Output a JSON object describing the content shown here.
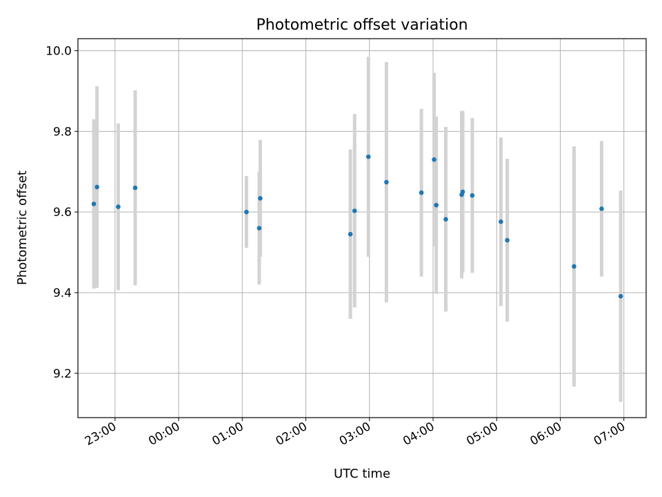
{
  "chart_data": {
    "type": "scatter",
    "title": "Photometric offset variation",
    "xlabel": "UTC time",
    "ylabel": "Photometric offset",
    "xlim": [
      "22:25",
      "07:21"
    ],
    "ylim": [
      9.09,
      10.03
    ],
    "grid": true,
    "x_ticks": [
      "23:00",
      "00:00",
      "01:00",
      "02:00",
      "03:00",
      "04:00",
      "05:00",
      "06:00",
      "07:00"
    ],
    "y_ticks": [
      9.2,
      9.4,
      9.6,
      9.8,
      10.0
    ],
    "y_tick_labels": [
      "9.2",
      "9.4",
      "9.6",
      "9.8",
      "10.0"
    ],
    "marker_color": "#1f77b4",
    "errorbar_color": "#d3d3d3",
    "points": [
      {
        "x": "22:40",
        "y": 9.62,
        "err": 0.21
      },
      {
        "x": "22:43",
        "y": 9.662,
        "err": 0.25
      },
      {
        "x": "23:03",
        "y": 9.613,
        "err": 0.207
      },
      {
        "x": "23:19",
        "y": 9.66,
        "err": 0.242
      },
      {
        "x": "01:04",
        "y": 9.6,
        "err": 0.089
      },
      {
        "x": "01:16",
        "y": 9.56,
        "err": 0.14
      },
      {
        "x": "01:17",
        "y": 9.634,
        "err": 0.145
      },
      {
        "x": "02:42",
        "y": 9.545,
        "err": 0.21
      },
      {
        "x": "02:46",
        "y": 9.603,
        "err": 0.24
      },
      {
        "x": "02:59",
        "y": 9.737,
        "err": 0.248
      },
      {
        "x": "03:16",
        "y": 9.674,
        "err": 0.298
      },
      {
        "x": "03:49",
        "y": 9.648,
        "err": 0.208
      },
      {
        "x": "04:01",
        "y": 9.73,
        "err": 0.215
      },
      {
        "x": "04:03",
        "y": 9.617,
        "err": 0.22
      },
      {
        "x": "04:12",
        "y": 9.582,
        "err": 0.229
      },
      {
        "x": "04:27",
        "y": 9.643,
        "err": 0.208
      },
      {
        "x": "04:28",
        "y": 9.65,
        "err": 0.2
      },
      {
        "x": "04:37",
        "y": 9.641,
        "err": 0.192
      },
      {
        "x": "05:04",
        "y": 9.576,
        "err": 0.209
      },
      {
        "x": "05:10",
        "y": 9.53,
        "err": 0.202
      },
      {
        "x": "06:13",
        "y": 9.465,
        "err": 0.298
      },
      {
        "x": "06:39",
        "y": 9.608,
        "err": 0.168
      },
      {
        "x": "06:57",
        "y": 9.391,
        "err": 0.262
      }
    ]
  }
}
